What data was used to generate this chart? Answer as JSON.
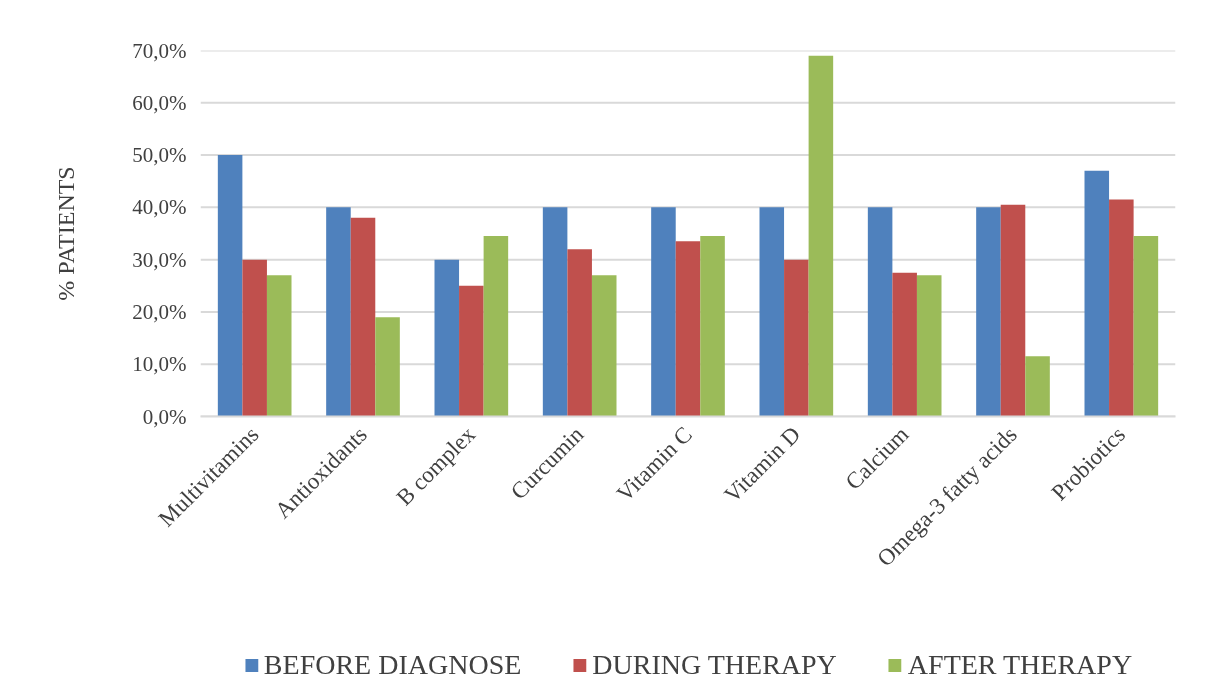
{
  "chart_data": {
    "type": "bar",
    "ylabel": "% PATIENTS",
    "categories": [
      "Multivitamins",
      "Antioxidants",
      "B complex",
      "Curcumin",
      "Vitamin C",
      "Vitamin D",
      "Calcium",
      "Omega-3 fatty acids",
      "Probiotics"
    ],
    "series": [
      {
        "name": "BEFORE DIAGNOSE",
        "color": "#4f81bd",
        "values": [
          50,
          40,
          30,
          40,
          40,
          40,
          40,
          40,
          47
        ]
      },
      {
        "name": "DURING THERAPY",
        "color": "#c0504d",
        "values": [
          30,
          38,
          25,
          32,
          33.5,
          30,
          27.5,
          40.5,
          41.5
        ]
      },
      {
        "name": "AFTER THERAPY",
        "color": "#9bbb59",
        "values": [
          27,
          19,
          34.5,
          27,
          34.5,
          69,
          27,
          11.5,
          34.5
        ]
      }
    ],
    "ylim": [
      0,
      70
    ],
    "yticks": [
      {
        "value": 0,
        "label": "0,0%"
      },
      {
        "value": 10,
        "label": "10,0%"
      },
      {
        "value": 20,
        "label": "20,0%"
      },
      {
        "value": 30,
        "label": "30,0%"
      },
      {
        "value": 40,
        "label": "40,0%"
      },
      {
        "value": 50,
        "label": "50,0%"
      },
      {
        "value": 60,
        "label": "60,0%"
      },
      {
        "value": 70,
        "label": "70,0%"
      }
    ],
    "grid": "y",
    "legend": "bottom"
  }
}
